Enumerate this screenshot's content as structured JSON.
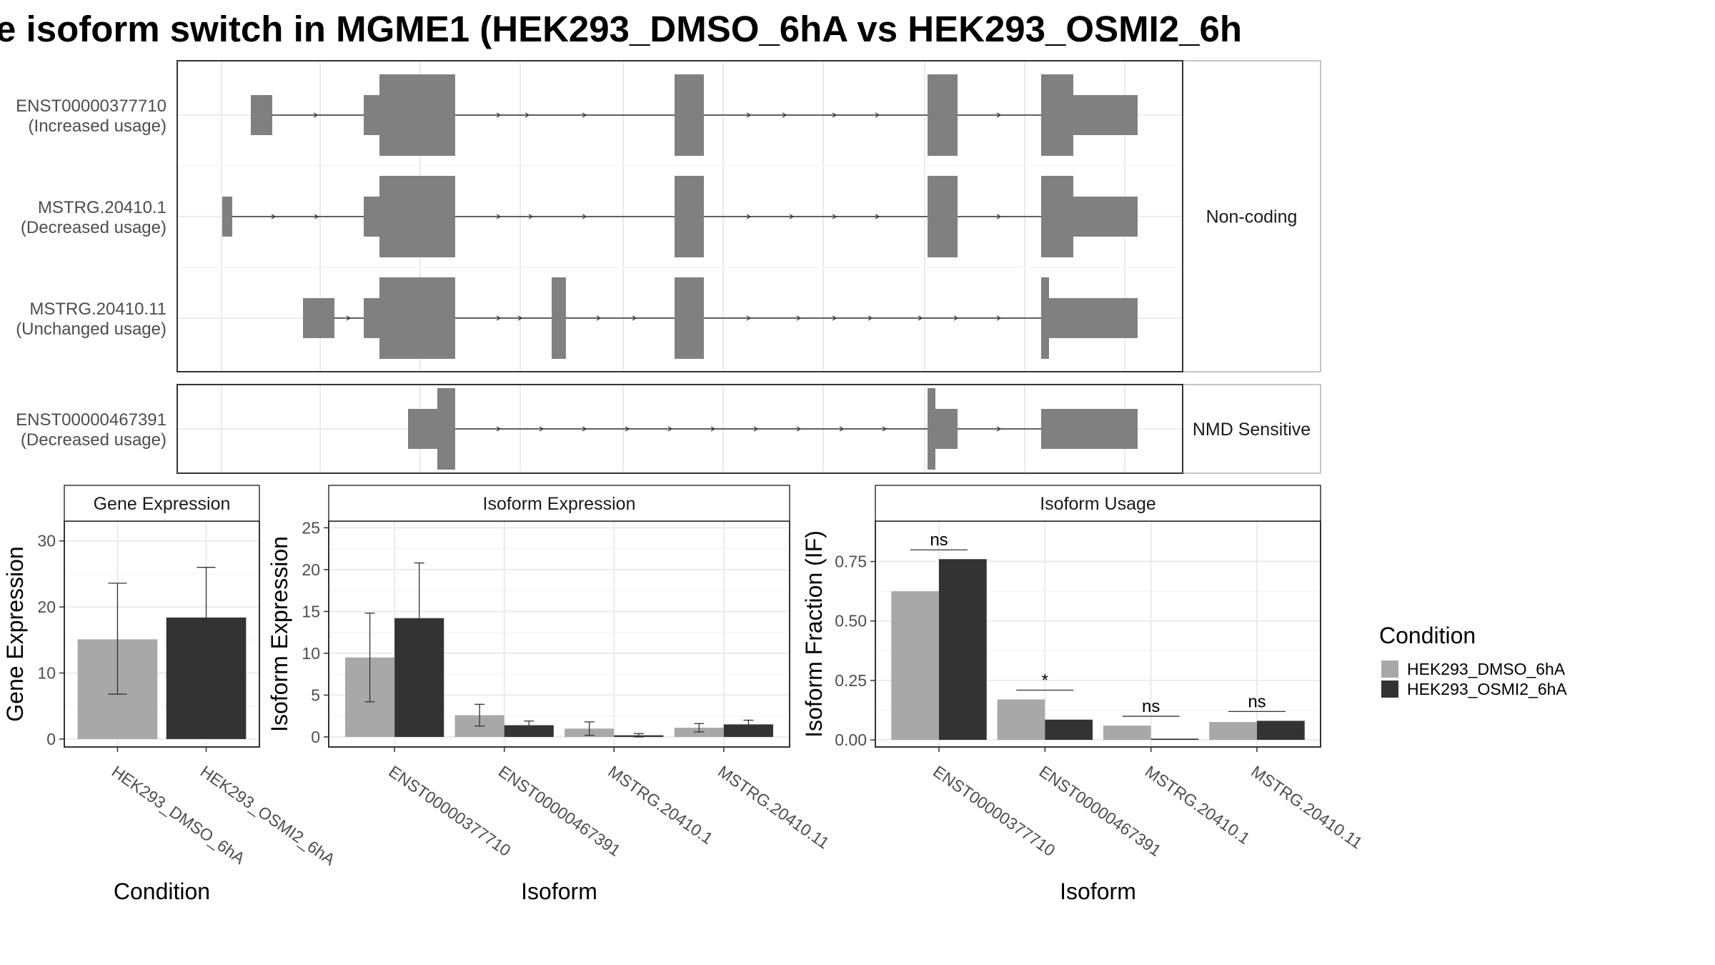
{
  "title": "e isoform switch in MGME1 (HEK293_DMSO_6hA vs HEK293_OSMI2_6h",
  "colors": {
    "dmso": "#a8a8a8",
    "osmi": "#333333",
    "exon": "#808080",
    "panel_border": "#333333",
    "grid": "#ebebeb",
    "strip_border": "#b3b3b3"
  },
  "transcripts": {
    "groups": [
      {
        "label": "Non-coding",
        "isoforms": [
          {
            "name": "ENST00000377710",
            "status": "(Increased usage)"
          },
          {
            "name": "MSTRG.20410.1",
            "status": "(Decreased usage)"
          },
          {
            "name": "MSTRG.20410.11",
            "status": "(Unchanged usage)"
          }
        ]
      },
      {
        "label": "NMD Sensitive",
        "isoforms": [
          {
            "name": "ENST00000467391",
            "status": "(Decreased usage)"
          }
        ]
      }
    ]
  },
  "chart_data": [
    {
      "type": "bar",
      "title": "Gene Expression",
      "xlabel": "Condition",
      "ylabel": "Gene Expression",
      "categories": [
        "HEK293_DMSO_6hA",
        "HEK293_OSMI2_6hA"
      ],
      "values": [
        15.1,
        18.4
      ],
      "error_low": [
        6.8,
        10.9
      ],
      "error_high": [
        23.6,
        26.0
      ],
      "bar_colors": [
        "#a8a8a8",
        "#333333"
      ],
      "ylim": [
        -1.2,
        33
      ],
      "yticks": [
        0,
        10,
        20,
        30
      ],
      "grid": true
    },
    {
      "type": "bar",
      "title": "Isoform Expression",
      "xlabel": "Isoform",
      "ylabel": "Isoform Expression",
      "categories": [
        "ENST00000377710",
        "ENST00000467391",
        "MSTRG.20410.1",
        "MSTRG.20410.11"
      ],
      "series": [
        {
          "name": "HEK293_DMSO_6hA",
          "values": [
            9.5,
            2.6,
            1.0,
            1.1
          ],
          "error_low": [
            4.2,
            1.3,
            0.2,
            0.6
          ],
          "error_high": [
            14.8,
            3.9,
            1.8,
            1.6
          ]
        },
        {
          "name": "HEK293_OSMI2_6hA",
          "values": [
            14.2,
            1.4,
            0.2,
            1.5
          ],
          "error_low": [
            7.6,
            1.0,
            0.0,
            1.0
          ],
          "error_high": [
            20.8,
            1.9,
            0.4,
            2.0
          ]
        }
      ],
      "ylim": [
        -1.2,
        25.8
      ],
      "yticks": [
        0,
        5,
        10,
        15,
        20,
        25
      ],
      "grid": true
    },
    {
      "type": "bar",
      "title": "Isoform Usage",
      "xlabel": "Isoform",
      "ylabel": "Isoform Fraction (IF)",
      "categories": [
        "ENST00000377710",
        "ENST00000467391",
        "MSTRG.20410.1",
        "MSTRG.20410.11"
      ],
      "series": [
        {
          "name": "HEK293_DMSO_6hA",
          "values": [
            0.625,
            0.17,
            0.06,
            0.075
          ]
        },
        {
          "name": "HEK293_OSMI2_6hA",
          "values": [
            0.76,
            0.085,
            0.005,
            0.08
          ]
        }
      ],
      "significance": [
        "ns",
        "*",
        "ns",
        "ns"
      ],
      "ylim": [
        -0.03,
        0.92
      ],
      "yticks": [
        0.0,
        0.25,
        0.5,
        0.75
      ],
      "ytick_labels": [
        "0.00",
        "0.25",
        "0.50",
        "0.75"
      ],
      "grid": true
    }
  ],
  "legend": {
    "title": "Condition",
    "entries": [
      {
        "label": "HEK293_DMSO_6hA",
        "color": "#a8a8a8"
      },
      {
        "label": "HEK293_OSMI2_6hA",
        "color": "#333333"
      }
    ],
    "placement": "right"
  }
}
